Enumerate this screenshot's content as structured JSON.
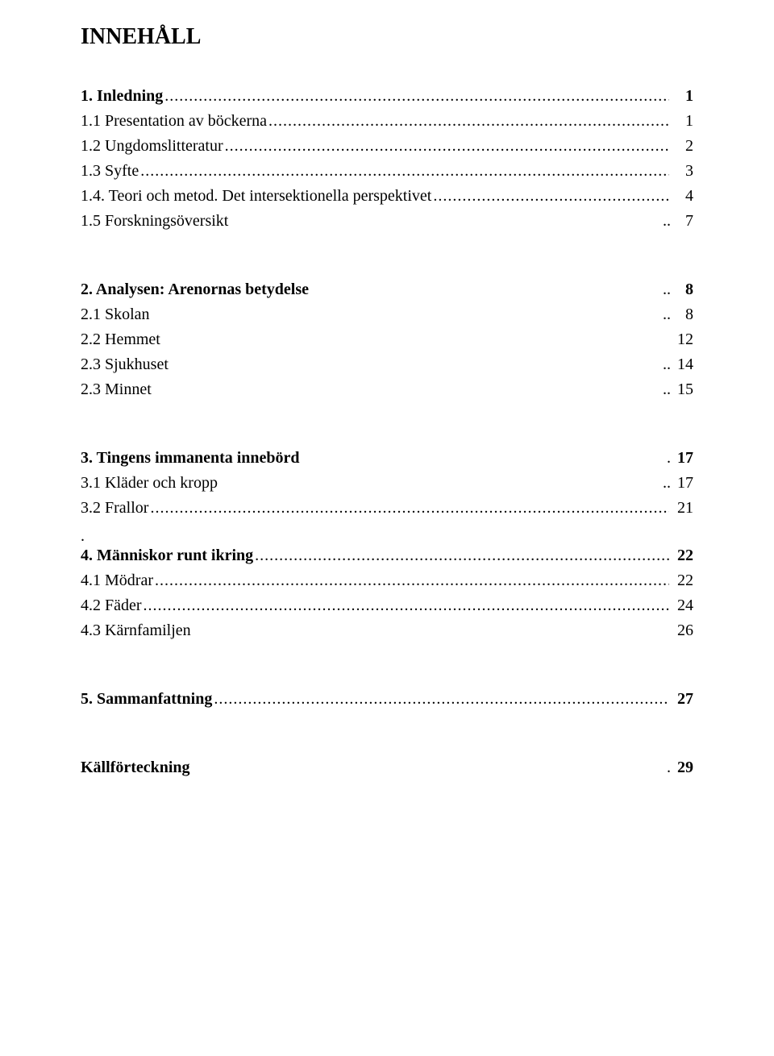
{
  "title": "INNEHÅLL",
  "entries": [
    {
      "label": "1. Inledning",
      "page": "1",
      "bold": true,
      "leader": true,
      "gap_before": 0
    },
    {
      "label": "1.1 Presentation av böckerna",
      "page": "1",
      "bold": false,
      "leader": true,
      "gap_before": 0
    },
    {
      "label": "1.2 Ungdomslitteratur",
      "page": "2",
      "bold": false,
      "leader": true,
      "gap_before": 0
    },
    {
      "label": "1.3 Syfte",
      "page": "3",
      "bold": false,
      "leader": true,
      "gap_before": 0
    },
    {
      "label": "1.4. Teori och metod. Det intersektionella perspektivet",
      "page": "4",
      "bold": false,
      "leader": true,
      "gap_before": 0
    },
    {
      "label": "1.5 Forskningsöversikt",
      "page": "7",
      "bold": false,
      "leader": false,
      "leader_short": ".. ",
      "gap_before": 0
    },
    {
      "label": "2. Analysen: Arenornas betydelse",
      "page": "8",
      "bold": true,
      "leader": false,
      "leader_short": ".. ",
      "gap_before": 46
    },
    {
      "label": "2.1 Skolan",
      "page": "8",
      "bold": false,
      "leader": false,
      "leader_short": ".. ",
      "gap_before": 0
    },
    {
      "label": "2.2 Hemmet",
      "page": "12",
      "bold": false,
      "leader": false,
      "leader_short": " ",
      "gap_before": 0
    },
    {
      "label": "2.3 Sjukhuset",
      "page": "14",
      "bold": false,
      "leader": false,
      "leader_short": ".. ",
      "gap_before": 0
    },
    {
      "label": "2.3 Minnet",
      "page": "15",
      "bold": false,
      "leader": false,
      "leader_short": ".. ",
      "gap_before": 0
    },
    {
      "label": "3. Tingens immanenta innebörd",
      "page": "17",
      "bold": true,
      "leader": false,
      "leader_short": ". ",
      "gap_before": 46
    },
    {
      "label": "3.1 Kläder och kropp",
      "page": "17",
      "bold": false,
      "leader": false,
      "leader_short": ".. ",
      "gap_before": 0
    },
    {
      "label": "3.2 Frallor",
      "page": "21",
      "bold": false,
      "leader": true,
      "gap_before": 0
    },
    {
      "label": "4. Människor runt ikring",
      "page": "22",
      "bold": true,
      "leader": true,
      "gap_before": 10,
      "dot_before": true
    },
    {
      "label": "4.1 Mödrar",
      "page": "22",
      "bold": false,
      "leader": true,
      "gap_before": 0
    },
    {
      "label": "4.2 Fäder",
      "page": "24",
      "bold": false,
      "leader": true,
      "gap_before": 0
    },
    {
      "label": "4.3 Kärnfamiljen",
      "page": "26",
      "bold": false,
      "leader": false,
      "leader_short": " ",
      "gap_before": 0
    },
    {
      "label": "5. Sammanfattning",
      "page": "27",
      "bold": true,
      "leader": true,
      "gap_before": 46
    },
    {
      "label": "Källförteckning",
      "page": "29",
      "bold": true,
      "leader": false,
      "leader_short": ". ",
      "gap_before": 46,
      "page_regular": true
    }
  ]
}
